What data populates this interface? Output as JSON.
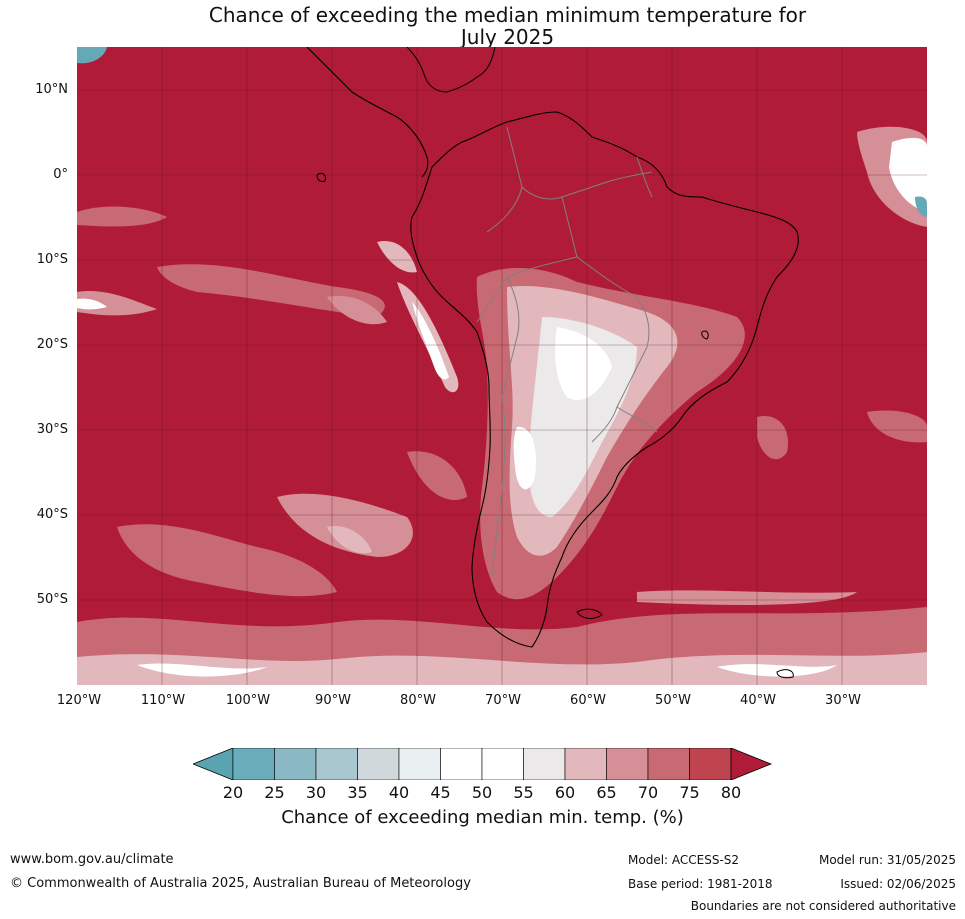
{
  "title_line1": "Chance of exceeding the median minimum temperature for",
  "title_line2": "July 2025",
  "map": {
    "lat_labels": [
      "10°N",
      "0°",
      "10°S",
      "20°S",
      "30°S",
      "40°S",
      "50°S"
    ],
    "lon_labels": [
      "120°W",
      "110°W",
      "100°W",
      "90°W",
      "80°W",
      "70°W",
      "60°W",
      "50°W",
      "40°W",
      "30°W"
    ],
    "colors": {
      "ocean_high": "#b01c38",
      "c75": "#c24552",
      "c70": "#cc6a74",
      "c65": "#d69198",
      "c60": "#e3b9bd",
      "c55": "#ececec",
      "c50": "#ffffff",
      "cool": "#66a9b6",
      "border_country": "#808080",
      "coast": "#000000"
    }
  },
  "colorbar": {
    "ticks": [
      "20",
      "25",
      "30",
      "35",
      "40",
      "45",
      "50",
      "55",
      "60",
      "65",
      "70",
      "75",
      "80"
    ],
    "colors": [
      "#5aa4b2",
      "#6aaebb",
      "#8ab8c4",
      "#a9c7ce",
      "#d0d8db",
      "#eaf0f2",
      "#ffffff",
      "#ffffff",
      "#ebe9ea",
      "#e2b8bd",
      "#d58f97",
      "#c86a73",
      "#c0444f",
      "#b01c38"
    ],
    "label": "Chance of exceeding median min. temp. (%)"
  },
  "footer": {
    "website": "www.bom.gov.au/climate",
    "copyright": "© Commonwealth of Australia 2025, Australian Bureau of Meteorology",
    "model": "Model: ACCESS-S2",
    "model_run": "Model run: 31/05/2025",
    "base_period": "Base period: 1981-2018",
    "issued": "Issued: 02/06/2025",
    "disclaimer": "Boundaries are not considered authoritative"
  }
}
